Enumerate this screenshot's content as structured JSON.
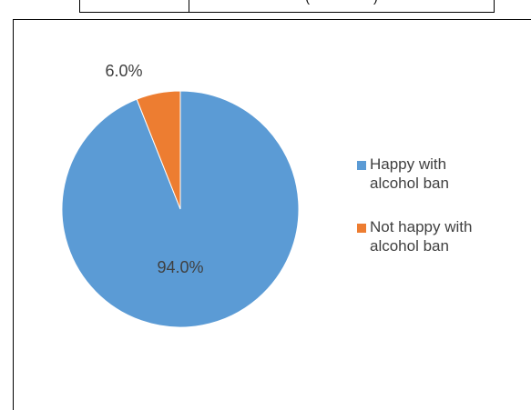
{
  "top_table": {
    "fragment": "(",
    "fragment2": ")"
  },
  "chart_data": {
    "type": "pie",
    "title": "",
    "categories": [
      "Happy with alcohol ban",
      "Not happy with alcohol ban"
    ],
    "values": [
      94.0,
      6.0
    ],
    "labels": [
      "94.0%",
      "6.0%"
    ],
    "colors": [
      "#5b9bd5",
      "#ed7d31"
    ],
    "legend": {
      "position": "right",
      "items": [
        {
          "line1": "Happy with",
          "line2": "alcohol ban"
        },
        {
          "line1": "Not happy with",
          "line2": "alcohol ban"
        }
      ]
    }
  }
}
